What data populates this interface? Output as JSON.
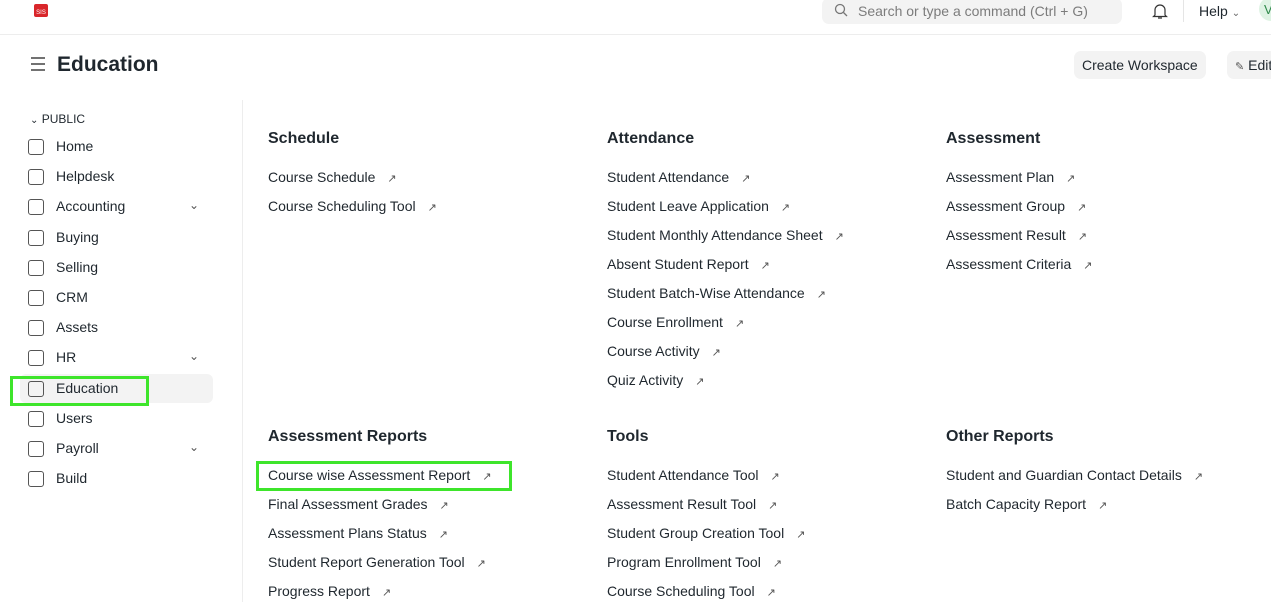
{
  "topbar": {
    "search_placeholder": "Search or type a command (Ctrl + G)",
    "help": "Help",
    "avatar": "V"
  },
  "header": {
    "title": "Education",
    "create_workspace": "Create Workspace",
    "edit": "Edit"
  },
  "sidebar": {
    "section": "PUBLIC",
    "items": [
      {
        "label": "Home",
        "chevron": false
      },
      {
        "label": "Helpdesk",
        "chevron": false
      },
      {
        "label": "Accounting",
        "chevron": true
      },
      {
        "label": "Buying",
        "chevron": false
      },
      {
        "label": "Selling",
        "chevron": false
      },
      {
        "label": "CRM",
        "chevron": false
      },
      {
        "label": "Assets",
        "chevron": false
      },
      {
        "label": "HR",
        "chevron": true
      },
      {
        "label": "Education",
        "chevron": false,
        "active": true
      },
      {
        "label": "Users",
        "chevron": false
      },
      {
        "label": "Payroll",
        "chevron": true
      },
      {
        "label": "Build",
        "chevron": false
      }
    ]
  },
  "cards": [
    {
      "title": "Schedule",
      "links": [
        "Course Schedule",
        "Course Scheduling Tool"
      ]
    },
    {
      "title": "Attendance",
      "links": [
        "Student Attendance",
        "Student Leave Application",
        "Student Monthly Attendance Sheet",
        "Absent Student Report",
        "Student Batch-Wise Attendance",
        "Course Enrollment",
        "Course Activity",
        "Quiz Activity"
      ]
    },
    {
      "title": "Assessment",
      "links": [
        "Assessment Plan",
        "Assessment Group",
        "Assessment Result",
        "Assessment Criteria"
      ]
    },
    {
      "title": "Assessment Reports",
      "links": [
        "Course wise Assessment Report",
        "Final Assessment Grades",
        "Assessment Plans Status",
        "Student Report Generation Tool",
        "Progress Report"
      ]
    },
    {
      "title": "Tools",
      "links": [
        "Student Attendance Tool",
        "Assessment Result Tool",
        "Student Group Creation Tool",
        "Program Enrollment Tool",
        "Course Scheduling Tool"
      ]
    },
    {
      "title": "Other Reports",
      "links": [
        "Student and Guardian Contact Details",
        "Batch Capacity Report"
      ]
    }
  ],
  "highlight_color": "#3ee52b"
}
